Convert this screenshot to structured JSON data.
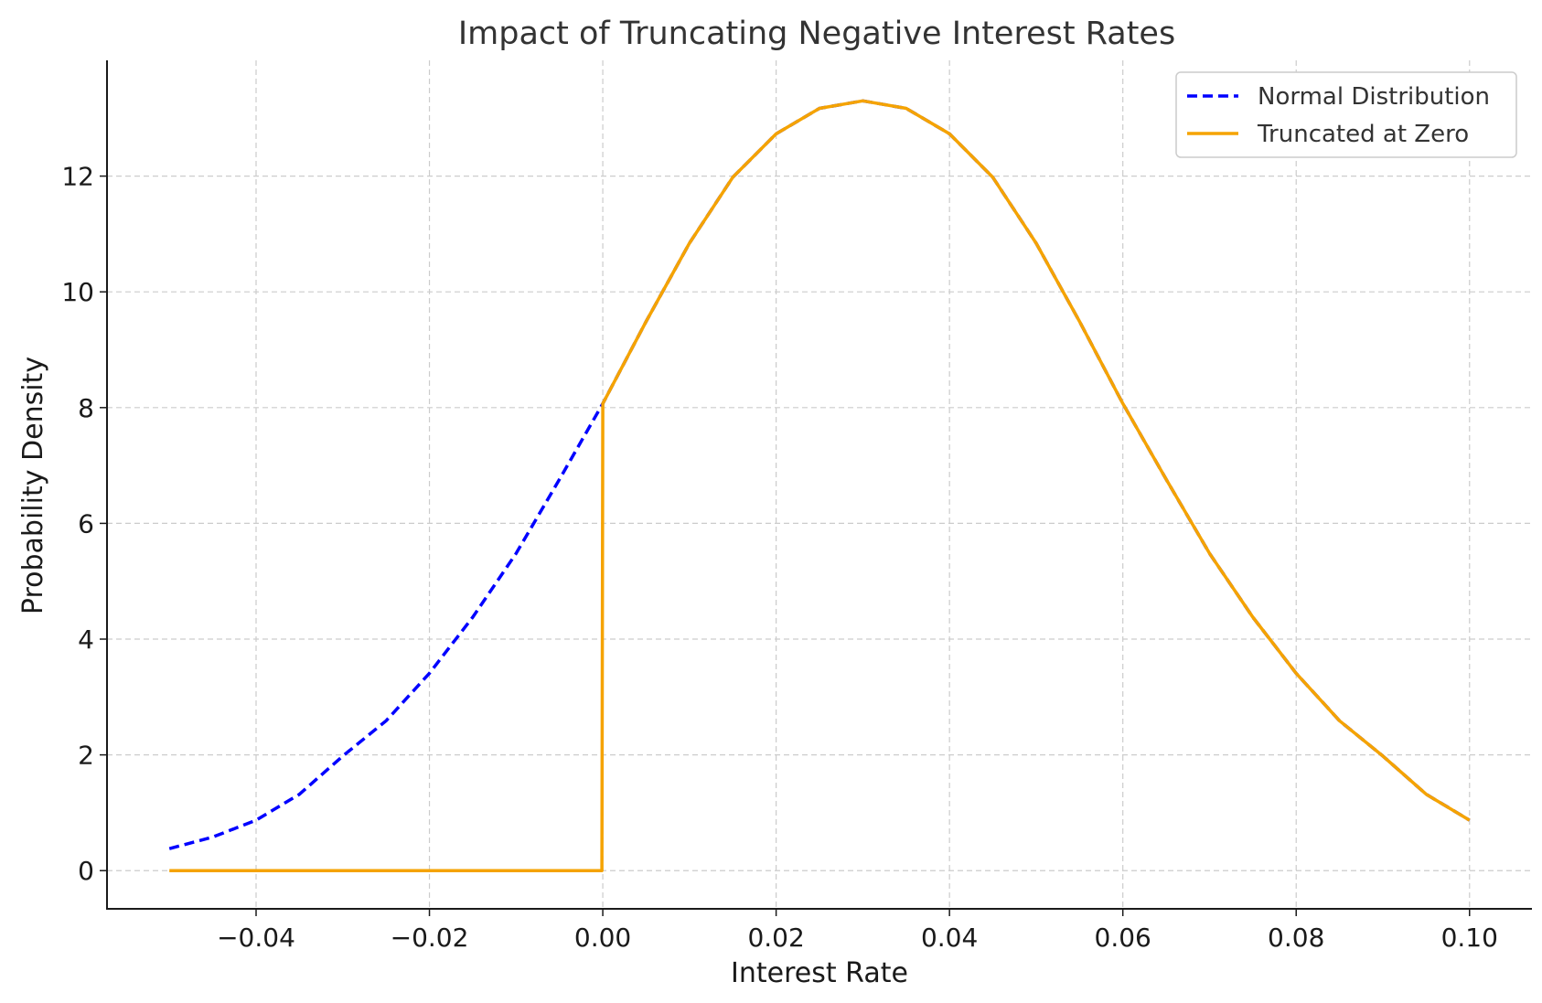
{
  "chart_data": {
    "type": "line",
    "title": "Impact of Truncating Negative Interest Rates",
    "xlabel": "Interest Rate",
    "ylabel": "Probability Density",
    "xlim": [
      -0.0572,
      0.1072
    ],
    "ylim": [
      -0.66,
      14.0
    ],
    "x_ticks": [
      -0.04,
      -0.02,
      0.0,
      0.02,
      0.04,
      0.06,
      0.08,
      0.1
    ],
    "x_tick_labels": [
      "−0.04",
      "−0.02",
      "0.00",
      "0.02",
      "0.04",
      "0.06",
      "0.08",
      "0.10"
    ],
    "y_ticks": [
      0,
      2,
      4,
      6,
      8,
      10,
      12
    ],
    "y_tick_labels": [
      "0",
      "2",
      "4",
      "6",
      "8",
      "10",
      "12"
    ],
    "grid": true,
    "legend_position": "top-right",
    "series": [
      {
        "name": "Normal Distribution",
        "color": "#0000ff",
        "style": "dashed",
        "x": [
          -0.05,
          -0.045,
          -0.04,
          -0.035,
          -0.03,
          -0.025,
          -0.02,
          -0.015,
          -0.01,
          -0.005,
          0.0,
          0.005,
          0.01,
          0.015,
          0.02,
          0.025,
          0.03,
          0.035,
          0.04,
          0.045,
          0.05,
          0.055,
          0.06,
          0.065,
          0.07,
          0.075,
          0.08,
          0.085,
          0.09,
          0.095,
          0.1
        ],
        "y": [
          0.38,
          0.58,
          0.87,
          1.32,
          1.98,
          2.59,
          3.41,
          4.38,
          5.48,
          6.76,
          8.07,
          9.49,
          10.84,
          11.98,
          12.73,
          13.17,
          13.3,
          13.17,
          12.73,
          11.98,
          10.84,
          9.49,
          8.07,
          6.76,
          5.48,
          4.38,
          3.41,
          2.59,
          1.98,
          1.32,
          0.87
        ]
      },
      {
        "name": "Truncated at Zero",
        "color": "#f5a300",
        "style": "solid",
        "x": [
          -0.05,
          -0.0001,
          0.0,
          0.005,
          0.01,
          0.015,
          0.02,
          0.025,
          0.03,
          0.035,
          0.04,
          0.045,
          0.05,
          0.055,
          0.06,
          0.065,
          0.07,
          0.075,
          0.08,
          0.085,
          0.09,
          0.095,
          0.1
        ],
        "y": [
          0.0,
          0.0,
          8.07,
          9.49,
          10.84,
          11.98,
          12.73,
          13.17,
          13.3,
          13.17,
          12.73,
          11.98,
          10.84,
          9.49,
          8.07,
          6.76,
          5.48,
          4.38,
          3.41,
          2.59,
          1.98,
          1.32,
          0.87
        ]
      }
    ]
  }
}
